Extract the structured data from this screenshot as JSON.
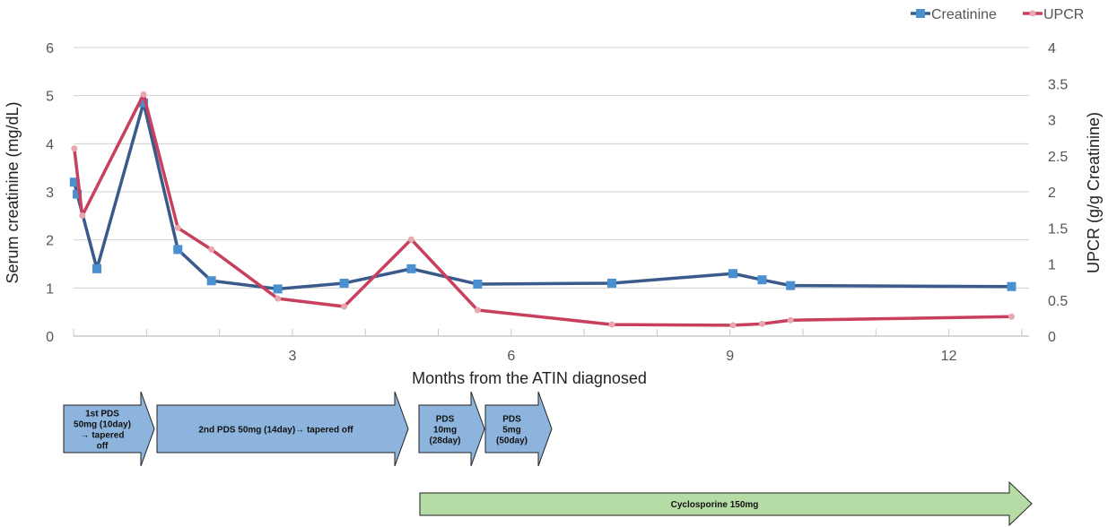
{
  "chart_data": {
    "type": "line",
    "xlabel": "Months from the ATIN diagnosed",
    "ylabel": "Serum creatinine (mg/dL)",
    "y2label": "UPCR (g/g Creatinine)",
    "xlim": [
      0,
      13.1
    ],
    "xticks": [
      3,
      6,
      9,
      12
    ],
    "ylim": [
      0,
      6
    ],
    "yticks": [
      0,
      1,
      2,
      3,
      4,
      5,
      6
    ],
    "y2lim": [
      0,
      4
    ],
    "y2ticks": [
      "0",
      "0.5",
      "1",
      "1.5",
      "2",
      "2.5",
      "3",
      "3.5",
      "4"
    ],
    "grid": true,
    "legend_position": "top-right",
    "series": [
      {
        "name": "Creatinine",
        "axis": "left",
        "color": "#3a5a8c",
        "marker_color": "#4a8fd0",
        "x": [
          0.01,
          0.05,
          0.32,
          0.96,
          1.43,
          1.89,
          2.8,
          3.71,
          4.63,
          5.54,
          7.38,
          9.04,
          9.44,
          9.83,
          12.86
        ],
        "y": [
          3.2,
          2.95,
          1.4,
          4.85,
          1.8,
          1.15,
          0.98,
          1.1,
          1.4,
          1.08,
          1.1,
          1.3,
          1.17,
          1.05,
          1.03
        ]
      },
      {
        "name": "UPCR",
        "axis": "right",
        "color": "#c8405e",
        "marker_color": "#e8a8b0",
        "x": [
          0.01,
          0.12,
          0.96,
          1.43,
          1.89,
          2.8,
          3.71,
          4.63,
          5.54,
          7.38,
          9.04,
          9.44,
          9.83,
          12.86
        ],
        "y": [
          2.6,
          1.67,
          3.35,
          1.5,
          1.2,
          0.52,
          0.41,
          1.34,
          0.36,
          0.16,
          0.15,
          0.17,
          0.22,
          0.27
        ]
      }
    ]
  },
  "treatments": [
    {
      "lines": [
        "1st PDS",
        "50mg (10day)",
        "→ tapered",
        "off"
      ],
      "color": "#8db4dc"
    },
    {
      "lines": [
        "2nd PDS 50mg (14day)→ tapered off"
      ],
      "color": "#8db4dc"
    },
    {
      "lines": [
        "PDS",
        "10mg",
        "(28day)"
      ],
      "color": "#8db4dc"
    },
    {
      "lines": [
        "PDS",
        "5mg",
        "(50day)"
      ],
      "color": "#8db4dc"
    },
    {
      "lines": [
        "Cyclosporine 150mg"
      ],
      "color": "#b5dca5"
    }
  ]
}
